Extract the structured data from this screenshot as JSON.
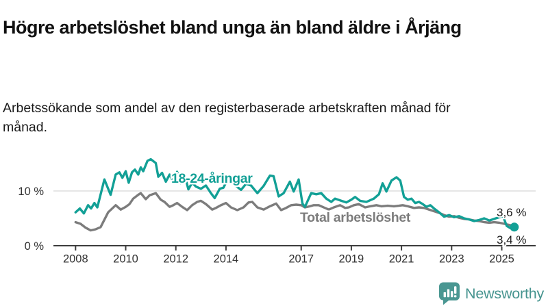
{
  "header": {
    "title": "Högre arbetslöshet bland unga än bland äldre i Årjäng",
    "subtitle": "Arbetssökande som andel av den registerbaserade arbetskraften månad för månad."
  },
  "logo": {
    "name": "Newsworthy",
    "icon": "newsworthy-speech-bubble-bar-chart-icon",
    "icon_color": "#4A9792",
    "text_color": "#46948F"
  },
  "chart_data": {
    "type": "line",
    "title": "Högre arbetslöshet bland unga än bland äldre i Årjäng",
    "xlabel": "",
    "ylabel": "Arbetssökande som andel av den registerbaserade arbetskraften (%)",
    "x_axis": {
      "ticks": [
        2008,
        2010,
        2012,
        2014,
        2017,
        2019,
        2021,
        2023,
        2025
      ],
      "range": [
        2007.4,
        2026.4
      ]
    },
    "y_axis": {
      "ticks": [
        {
          "value": 0,
          "label": "0 %"
        },
        {
          "value": 10,
          "label": "10 %"
        }
      ],
      "unit": "%",
      "gridlines": [
        10
      ],
      "range_shown": [
        0,
        16.5
      ]
    },
    "legend_position": "inline-labels",
    "series": [
      {
        "name": "Total arbetslöshet",
        "color": "#7C7C7C",
        "latest_value": 3.6,
        "end_label": "3,6 %",
        "end_label_side": "above",
        "end_dot": false,
        "points": [
          [
            2008.0,
            4.3
          ],
          [
            2008.2,
            4.0
          ],
          [
            2008.4,
            3.3
          ],
          [
            2008.6,
            2.8
          ],
          [
            2008.8,
            3.0
          ],
          [
            2009.0,
            3.4
          ],
          [
            2009.3,
            6.1
          ],
          [
            2009.6,
            7.4
          ],
          [
            2009.8,
            6.6
          ],
          [
            2010.0,
            7.1
          ],
          [
            2010.15,
            7.6
          ],
          [
            2010.3,
            8.6
          ],
          [
            2010.5,
            9.3
          ],
          [
            2010.6,
            9.6
          ],
          [
            2010.8,
            8.5
          ],
          [
            2010.95,
            9.2
          ],
          [
            2011.2,
            9.6
          ],
          [
            2011.4,
            8.4
          ],
          [
            2011.55,
            8.0
          ],
          [
            2011.75,
            7.1
          ],
          [
            2011.9,
            7.4
          ],
          [
            2012.05,
            7.8
          ],
          [
            2012.25,
            7.1
          ],
          [
            2012.45,
            6.5
          ],
          [
            2012.65,
            7.4
          ],
          [
            2012.85,
            8.0
          ],
          [
            2013.0,
            8.2
          ],
          [
            2013.2,
            7.6
          ],
          [
            2013.45,
            6.6
          ],
          [
            2013.6,
            6.9
          ],
          [
            2013.8,
            7.4
          ],
          [
            2014.0,
            7.8
          ],
          [
            2014.2,
            7.0
          ],
          [
            2014.45,
            6.5
          ],
          [
            2014.7,
            7.0
          ],
          [
            2014.9,
            7.9
          ],
          [
            2015.05,
            8.0
          ],
          [
            2015.25,
            7.0
          ],
          [
            2015.5,
            6.6
          ],
          [
            2015.75,
            7.2
          ],
          [
            2016.0,
            7.7
          ],
          [
            2016.2,
            6.5
          ],
          [
            2016.4,
            6.9
          ],
          [
            2016.6,
            7.4
          ],
          [
            2016.8,
            7.5
          ],
          [
            2017.0,
            7.4
          ],
          [
            2017.15,
            7.0
          ],
          [
            2017.35,
            7.2
          ],
          [
            2017.5,
            7.4
          ],
          [
            2017.7,
            7.4
          ],
          [
            2017.9,
            7.0
          ],
          [
            2018.1,
            6.6
          ],
          [
            2018.3,
            7.0
          ],
          [
            2018.55,
            7.4
          ],
          [
            2018.75,
            6.9
          ],
          [
            2018.9,
            7.0
          ],
          [
            2019.1,
            7.4
          ],
          [
            2019.3,
            7.6
          ],
          [
            2019.55,
            7.0
          ],
          [
            2019.75,
            7.2
          ],
          [
            2020.0,
            7.4
          ],
          [
            2020.2,
            7.2
          ],
          [
            2020.45,
            7.3
          ],
          [
            2020.7,
            7.2
          ],
          [
            2020.9,
            7.3
          ],
          [
            2021.05,
            7.4
          ],
          [
            2021.25,
            7.2
          ],
          [
            2021.5,
            6.9
          ],
          [
            2021.7,
            7.0
          ],
          [
            2021.9,
            6.9
          ],
          [
            2022.1,
            6.6
          ],
          [
            2022.3,
            6.3
          ],
          [
            2022.5,
            6.0
          ],
          [
            2022.7,
            5.6
          ],
          [
            2022.9,
            5.3
          ],
          [
            2023.1,
            5.4
          ],
          [
            2023.3,
            5.1
          ],
          [
            2023.5,
            4.9
          ],
          [
            2023.7,
            4.8
          ],
          [
            2023.9,
            4.6
          ],
          [
            2024.1,
            4.5
          ],
          [
            2024.3,
            4.3
          ],
          [
            2024.5,
            4.2
          ],
          [
            2024.7,
            4.3
          ],
          [
            2024.9,
            4.2
          ],
          [
            2025.1,
            4.0
          ],
          [
            2025.3,
            3.8
          ],
          [
            2025.5,
            3.6
          ]
        ]
      },
      {
        "name": "18-24-åringar",
        "color": "#12A096",
        "latest_value": 3.4,
        "end_label": "3,4 %",
        "end_label_side": "below",
        "end_dot": true,
        "points": [
          [
            2008.0,
            6.1
          ],
          [
            2008.17,
            6.8
          ],
          [
            2008.33,
            5.9
          ],
          [
            2008.5,
            7.4
          ],
          [
            2008.62,
            6.8
          ],
          [
            2008.75,
            7.8
          ],
          [
            2008.87,
            7.0
          ],
          [
            2009.15,
            12.1
          ],
          [
            2009.4,
            9.3
          ],
          [
            2009.6,
            13.0
          ],
          [
            2009.75,
            13.4
          ],
          [
            2009.87,
            12.4
          ],
          [
            2010.0,
            13.6
          ],
          [
            2010.12,
            11.5
          ],
          [
            2010.25,
            13.4
          ],
          [
            2010.37,
            13.9
          ],
          [
            2010.5,
            13.0
          ],
          [
            2010.6,
            14.3
          ],
          [
            2010.7,
            13.6
          ],
          [
            2010.87,
            15.5
          ],
          [
            2011.0,
            15.8
          ],
          [
            2011.2,
            15.1
          ],
          [
            2011.3,
            12.6
          ],
          [
            2011.45,
            13.3
          ],
          [
            2011.6,
            11.7
          ],
          [
            2011.75,
            13.0
          ],
          [
            2011.9,
            11.5
          ],
          [
            2012.05,
            13.5
          ],
          [
            2012.2,
            11.4
          ],
          [
            2012.35,
            12.9
          ],
          [
            2012.5,
            10.3
          ],
          [
            2012.65,
            11.5
          ],
          [
            2012.8,
            10.8
          ],
          [
            2013.0,
            10.4
          ],
          [
            2013.2,
            11.0
          ],
          [
            2013.4,
            9.6
          ],
          [
            2013.55,
            8.7
          ],
          [
            2013.75,
            10.4
          ],
          [
            2013.9,
            10.6
          ],
          [
            2014.05,
            12.0
          ],
          [
            2014.25,
            12.3
          ],
          [
            2014.4,
            10.9
          ],
          [
            2014.6,
            10.2
          ],
          [
            2014.8,
            11.3
          ],
          [
            2015.0,
            11.0
          ],
          [
            2015.25,
            9.6
          ],
          [
            2015.5,
            10.9
          ],
          [
            2015.75,
            12.8
          ],
          [
            2015.9,
            12.7
          ],
          [
            2016.1,
            9.0
          ],
          [
            2016.3,
            9.6
          ],
          [
            2016.55,
            11.7
          ],
          [
            2016.7,
            9.9
          ],
          [
            2016.9,
            12.1
          ],
          [
            2017.05,
            7.7
          ],
          [
            2017.15,
            7.1
          ],
          [
            2017.4,
            9.6
          ],
          [
            2017.6,
            9.4
          ],
          [
            2017.8,
            9.6
          ],
          [
            2018.0,
            8.6
          ],
          [
            2018.2,
            8.0
          ],
          [
            2018.35,
            8.6
          ],
          [
            2018.6,
            8.2
          ],
          [
            2018.8,
            7.9
          ],
          [
            2019.0,
            8.4
          ],
          [
            2019.15,
            8.9
          ],
          [
            2019.35,
            8.2
          ],
          [
            2019.6,
            8.0
          ],
          [
            2019.9,
            8.6
          ],
          [
            2020.1,
            9.4
          ],
          [
            2020.25,
            11.4
          ],
          [
            2020.4,
            9.9
          ],
          [
            2020.6,
            11.9
          ],
          [
            2020.8,
            12.5
          ],
          [
            2020.95,
            11.9
          ],
          [
            2021.1,
            8.9
          ],
          [
            2021.25,
            8.4
          ],
          [
            2021.4,
            8.6
          ],
          [
            2021.55,
            7.8
          ],
          [
            2021.7,
            8.0
          ],
          [
            2021.85,
            7.6
          ],
          [
            2022.0,
            7.1
          ],
          [
            2022.15,
            7.4
          ],
          [
            2022.3,
            6.8
          ],
          [
            2022.5,
            6.1
          ],
          [
            2022.7,
            5.3
          ],
          [
            2022.9,
            5.6
          ],
          [
            2023.1,
            5.2
          ],
          [
            2023.3,
            5.4
          ],
          [
            2023.5,
            5.0
          ],
          [
            2023.7,
            4.8
          ],
          [
            2023.9,
            4.5
          ],
          [
            2024.1,
            4.7
          ],
          [
            2024.3,
            5.0
          ],
          [
            2024.5,
            4.6
          ],
          [
            2024.7,
            4.9
          ],
          [
            2024.9,
            5.2
          ],
          [
            2025.05,
            5.4
          ],
          [
            2025.2,
            3.6
          ],
          [
            2025.35,
            3.2
          ],
          [
            2025.5,
            3.4
          ]
        ]
      }
    ]
  }
}
